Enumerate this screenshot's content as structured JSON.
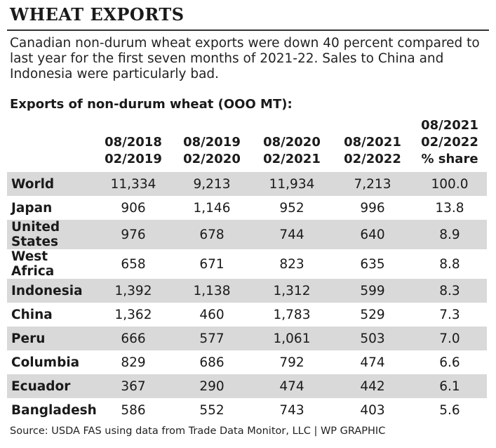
{
  "title": "WHEAT EXPORTS",
  "description": "Canadian non-durum wheat exports were down 40 percent compared to last year for the first seven months of 2021-22. Sales to China and Indonesia were particularly bad.",
  "subtitle": "Exports of non-durum wheat (OOO MT):",
  "source": "Source: USDA FAS using data from Trade Data Monitor, LLC  |  WP GRAPHIC",
  "colors": {
    "row_shade": "#d9d9d9",
    "rule": "#333333",
    "text": "#222222"
  },
  "chart_data": {
    "type": "table",
    "title": "WHEAT EXPORTS",
    "columns": [
      [
        "08/2018",
        "02/2019"
      ],
      [
        "08/2019",
        "02/2020"
      ],
      [
        "08/2020",
        "02/2021"
      ],
      [
        "08/2021",
        "02/2022"
      ],
      [
        "08/2021",
        "02/2022",
        "% share"
      ]
    ],
    "rows": [
      {
        "name": "World",
        "values": [
          "11,334",
          "9,213",
          "11,934",
          "7,213",
          "100.0"
        ]
      },
      {
        "name": "Japan",
        "values": [
          "906",
          "1,146",
          "952",
          "996",
          "13.8"
        ]
      },
      {
        "name": "United States",
        "values": [
          "976",
          "678",
          "744",
          "640",
          "8.9"
        ]
      },
      {
        "name": "West Africa",
        "values": [
          "658",
          "671",
          "823",
          "635",
          "8.8"
        ]
      },
      {
        "name": "Indonesia",
        "values": [
          "1,392",
          "1,138",
          "1,312",
          "599",
          "8.3"
        ]
      },
      {
        "name": "China",
        "values": [
          "1,362",
          "460",
          "1,783",
          "529",
          "7.3"
        ]
      },
      {
        "name": "Peru",
        "values": [
          "666",
          "577",
          "1,061",
          "503",
          "7.0"
        ]
      },
      {
        "name": "Columbia",
        "values": [
          "829",
          "686",
          "792",
          "474",
          "6.6"
        ]
      },
      {
        "name": "Ecuador",
        "values": [
          "367",
          "290",
          "474",
          "442",
          "6.1"
        ]
      },
      {
        "name": "Bangladesh",
        "values": [
          "586",
          "552",
          "743",
          "403",
          "5.6"
        ]
      }
    ]
  }
}
